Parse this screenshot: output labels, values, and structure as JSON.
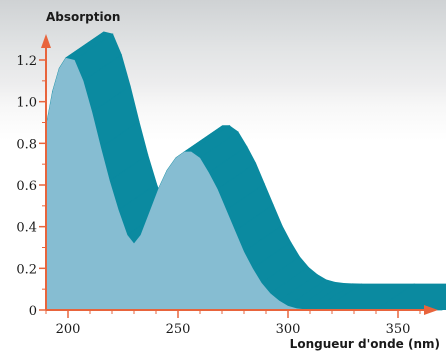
{
  "chart_data": {
    "type": "area",
    "title": "",
    "ylabel": "Absorption",
    "xlabel": "Longueur d'onde (nm)",
    "xlim": [
      190,
      370
    ],
    "ylim": [
      0,
      1.3
    ],
    "x_ticks": [
      200,
      250,
      300,
      350
    ],
    "y_ticks": [
      0,
      0.2,
      0.4,
      0.6,
      0.8,
      1.0,
      1.2
    ],
    "y_tick_labels": [
      "0",
      "0.2",
      "0.4",
      "0.6",
      "0.8",
      "1.0",
      "1.2"
    ],
    "series": [
      {
        "x": [
          190,
          193,
          196,
          199,
          203,
          207,
          211,
          215,
          219,
          223,
          227,
          230,
          233,
          237,
          241,
          245,
          249,
          253,
          256,
          260,
          264,
          268,
          272,
          276,
          280,
          284,
          288,
          292,
          296,
          300,
          304,
          308,
          312,
          316,
          340,
          370
        ],
        "y": [
          0.88,
          1.05,
          1.16,
          1.21,
          1.2,
          1.1,
          0.95,
          0.78,
          0.62,
          0.48,
          0.36,
          0.32,
          0.36,
          0.47,
          0.58,
          0.67,
          0.73,
          0.76,
          0.76,
          0.73,
          0.66,
          0.58,
          0.48,
          0.38,
          0.28,
          0.2,
          0.13,
          0.08,
          0.045,
          0.02,
          0.008,
          0.003,
          0.001,
          0.0,
          0.0,
          0.0
        ]
      }
    ],
    "colors": {
      "front_fill": "#86bdd2",
      "side_fill": "#0b8aa0",
      "axis": "#e8643c",
      "tick_text": "#1a1a1a"
    }
  }
}
